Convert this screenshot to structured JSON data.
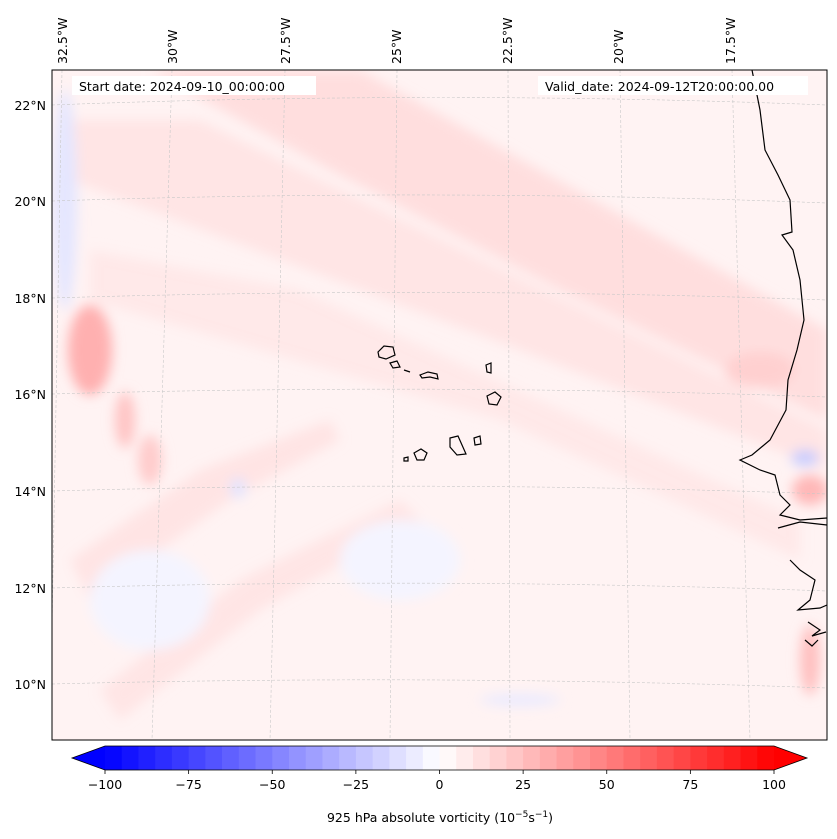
{
  "map": {
    "start_date": "Start date: 2024-09-10_00:00:00",
    "valid_date": "Valid_date: 2024-09-12T20:00:00.00",
    "lon_labels": [
      "32.5°W",
      "30°W",
      "27.5°W",
      "25°W",
      "22.5°W",
      "20°W",
      "17.5°W"
    ],
    "lat_labels": [
      "22°N",
      "20°N",
      "18°N",
      "16°N",
      "14°N",
      "12°N",
      "10°N"
    ]
  },
  "colorbar": {
    "label_prefix": "925 hPa absolute vorticity (10",
    "label_exp1": "−5",
    "label_mid": "s",
    "label_exp2": "−1",
    "label_suffix": ")",
    "ticks": [
      "−100",
      "−75",
      "−50",
      "−25",
      "0",
      "25",
      "50",
      "75",
      "100"
    ],
    "vmin": -100,
    "vmax": 100,
    "cmap": "bwr",
    "low_color": "#0000ff",
    "mid_color": "#ffffff",
    "high_color": "#ff0000"
  }
}
